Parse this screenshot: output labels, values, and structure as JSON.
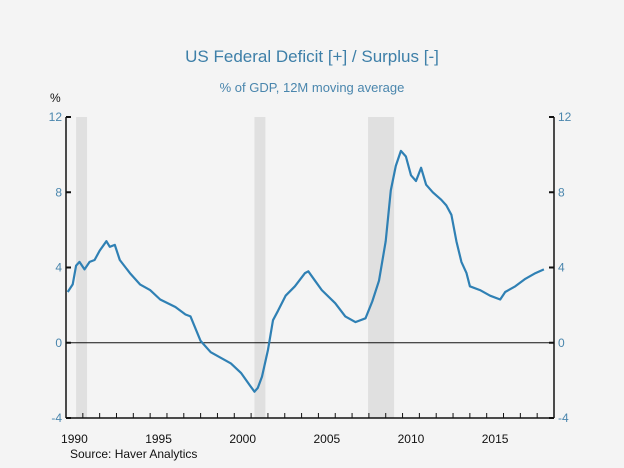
{
  "chart_data": {
    "type": "line",
    "title": "US Federal Deficit [+] / Surplus [-]",
    "subtitle": "% of GDP, 12M moving average",
    "ylabel": "%",
    "xlabel": "",
    "source": "Source:   Haver Analytics",
    "xlim": [
      1990,
      2019
    ],
    "ylim": [
      -4,
      12
    ],
    "yticks": [
      -4,
      0,
      4,
      8,
      12
    ],
    "ytick_labels": [
      "-4",
      "0",
      "4",
      "8",
      "12"
    ],
    "xticks": [
      1990,
      1995,
      2000,
      2005,
      2010,
      2015
    ],
    "xtick_labels": [
      "1990",
      "1995",
      "2000",
      "2005",
      "2010",
      "2015"
    ],
    "zero_line": true,
    "grid": false,
    "recessions": [
      [
        1990.6,
        1991.25
      ],
      [
        2001.2,
        2001.85
      ],
      [
        2007.95,
        2009.5
      ]
    ],
    "colors": {
      "line": "#2f80b4",
      "recession": "#e0e0e0",
      "title": "#3d7fa8"
    },
    "series": [
      {
        "name": "US Federal Deficit / Surplus, % of GDP",
        "x": [
          1990.1,
          1990.4,
          1990.6,
          1990.8,
          1991.1,
          1991.4,
          1991.7,
          1992.0,
          1992.4,
          1992.6,
          1992.9,
          1993.2,
          1993.8,
          1994.4,
          1995.0,
          1995.6,
          1996.5,
          1997.1,
          1997.4,
          1998.0,
          1998.6,
          1999.2,
          1999.8,
          2000.4,
          2000.95,
          2001.2,
          2001.4,
          2001.65,
          2002.0,
          2002.3,
          2002.6,
          2003.05,
          2003.6,
          2004.2,
          2004.4,
          2004.8,
          2005.2,
          2006.0,
          2006.6,
          2007.2,
          2007.8,
          2008.2,
          2008.6,
          2009.0,
          2009.3,
          2009.6,
          2009.9,
          2010.2,
          2010.5,
          2010.8,
          2011.1,
          2011.4,
          2011.8,
          2012.3,
          2012.6,
          2012.9,
          2013.2,
          2013.5,
          2013.8,
          2014.0,
          2014.6,
          2015.2,
          2015.8,
          2016.1,
          2016.7,
          2017.3,
          2017.9,
          2018.4
        ],
        "values": [
          2.7,
          3.1,
          4.1,
          4.3,
          3.9,
          4.3,
          4.4,
          4.9,
          5.4,
          5.1,
          5.2,
          4.4,
          3.7,
          3.1,
          2.8,
          2.3,
          1.9,
          1.5,
          1.4,
          0.1,
          -0.5,
          -0.8,
          -1.1,
          -1.6,
          -2.3,
          -2.6,
          -2.4,
          -1.8,
          -0.4,
          1.2,
          1.7,
          2.5,
          3.0,
          3.7,
          3.8,
          3.3,
          2.8,
          2.1,
          1.4,
          1.1,
          1.3,
          2.2,
          3.3,
          5.4,
          8.1,
          9.4,
          10.2,
          9.9,
          8.9,
          8.6,
          9.3,
          8.4,
          8.0,
          7.6,
          7.3,
          6.8,
          5.4,
          4.3,
          3.7,
          3.0,
          2.8,
          2.5,
          2.3,
          2.7,
          3.0,
          3.4,
          3.7,
          3.9
        ]
      }
    ]
  }
}
